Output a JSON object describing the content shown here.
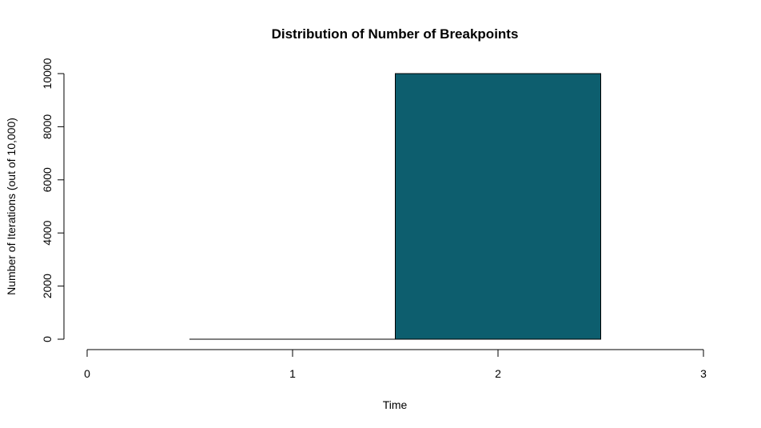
{
  "chart_data": {
    "type": "bar",
    "title": "Distribution of Number of Breakpoints",
    "xlabel": "Time",
    "ylabel": "Number of Iterations (out of 10,000)",
    "x_ticks": [
      "0",
      "1",
      "2",
      "3"
    ],
    "y_ticks": [
      "0",
      "2000",
      "4000",
      "6000",
      "8000",
      "10000"
    ],
    "xlim": [
      0,
      3
    ],
    "ylim": [
      0,
      10000
    ],
    "categories": [
      "1",
      "2"
    ],
    "values": [
      0,
      10000
    ],
    "bar_color": "#0d5e6e",
    "bar_border_color": "#000000",
    "grid": false
  }
}
